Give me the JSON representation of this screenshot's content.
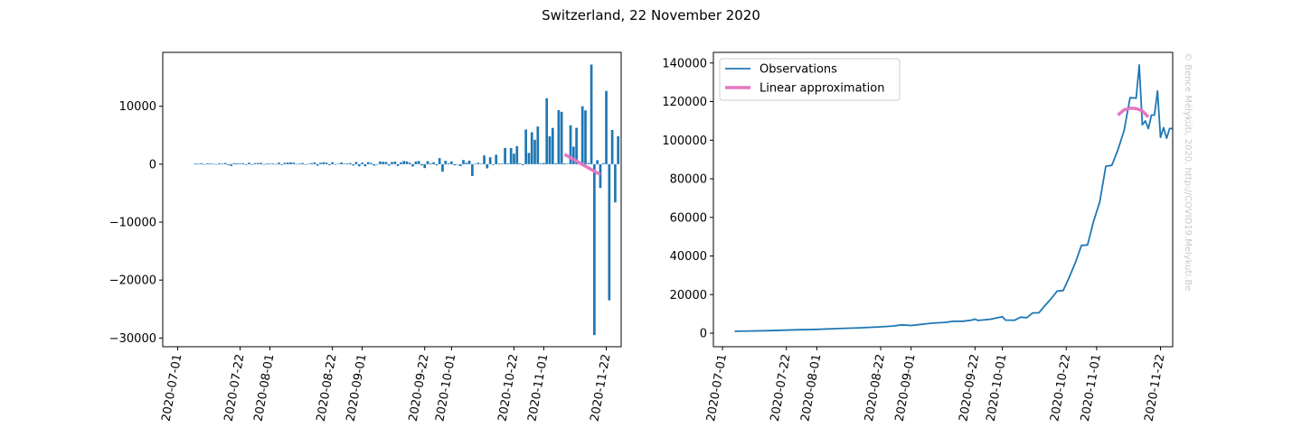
{
  "suptitle": "Switzerland, 22 November 2020",
  "watermark": "© Bence Mélykúti, 2020. http://COVID19.Melykuti.Be",
  "colors": {
    "observations": "#1f77b4",
    "approximation": "#e377c2"
  },
  "chart_data": [
    {
      "type": "bar",
      "title": "",
      "xlabel": "",
      "ylabel": "",
      "xlim": [
        "2020-06-26",
        "2020-11-27"
      ],
      "ylim": [
        -31500,
        19300
      ],
      "yticks": [
        -30000,
        -20000,
        -10000,
        0,
        10000
      ],
      "ytick_labels": [
        "−30000",
        "−20000",
        "−10000",
        "0",
        "10000"
      ],
      "xticks": [
        "2020-07-01",
        "2020-07-22",
        "2020-08-01",
        "2020-08-22",
        "2020-09-01",
        "2020-09-22",
        "2020-10-01",
        "2020-10-22",
        "2020-11-01",
        "2020-11-22"
      ],
      "start_date": "2020-07-07",
      "end_date": "2020-11-20",
      "values": [
        130,
        90,
        170,
        -40,
        140,
        120,
        80,
        -60,
        150,
        100,
        210,
        -150,
        -300,
        170,
        150,
        120,
        170,
        -120,
        260,
        -100,
        180,
        200,
        240,
        -80,
        140,
        110,
        120,
        30,
        270,
        -130,
        240,
        280,
        310,
        260,
        20,
        120,
        200,
        -60,
        90,
        180,
        310,
        -260,
        240,
        340,
        260,
        -170,
        340,
        -80,
        90,
        290,
        80,
        130,
        200,
        -230,
        390,
        -360,
        280,
        -370,
        360,
        210,
        -250,
        -100,
        470,
        410,
        390,
        -230,
        380,
        450,
        -300,
        310,
        550,
        480,
        250,
        -390,
        460,
        550,
        -220,
        -670,
        520,
        140,
        340,
        -210,
        1050,
        -1300,
        580,
        160,
        480,
        -190,
        -20,
        -330,
        720,
        240,
        620,
        -2050,
        90,
        240,
        80,
        1500,
        -720,
        1190,
        -120,
        1630,
        120,
        110,
        2800,
        140,
        2780,
        1810,
        3130,
        140,
        -160,
        5990,
        1950,
        5510,
        4210,
        6500,
        140,
        210,
        11380,
        4810,
        6260,
        150,
        9320,
        9040,
        130,
        90,
        6730,
        3030,
        6280,
        150,
        10000,
        9290,
        200,
        17200,
        -29500,
        700,
        -4100,
        190,
        12650,
        -23500,
        5910,
        -6600,
        4840
      ],
      "approximation": {
        "name": "Linear approximation",
        "x": [
          "2020-11-08",
          "2020-11-20"
        ],
        "y": [
          1700,
          -1800
        ]
      }
    },
    {
      "type": "line",
      "title": "",
      "xlabel": "",
      "ylabel": "",
      "xlim": [
        "2020-06-28",
        "2020-11-26"
      ],
      "ylim": [
        -7000,
        145500
      ],
      "yticks": [
        0,
        20000,
        40000,
        60000,
        80000,
        100000,
        120000,
        140000
      ],
      "ytick_labels": [
        "0",
        "20000",
        "40000",
        "60000",
        "80000",
        "100000",
        "120000",
        "140000"
      ],
      "xticks": [
        "2020-07-01",
        "2020-07-22",
        "2020-08-01",
        "2020-08-22",
        "2020-09-01",
        "2020-09-22",
        "2020-10-01",
        "2020-10-22",
        "2020-11-01",
        "2020-11-22"
      ],
      "legend": {
        "placement": "upper-left",
        "entries": [
          "Observations",
          "Linear approximation"
        ]
      },
      "series": [
        {
          "name": "Observations",
          "points": [
            [
              "2020-07-05",
              1000
            ],
            [
              "2020-07-10",
              1150
            ],
            [
              "2020-07-15",
              1300
            ],
            [
              "2020-07-20",
              1500
            ],
            [
              "2020-07-25",
              1750
            ],
            [
              "2020-08-01",
              2000
            ],
            [
              "2020-08-08",
              2400
            ],
            [
              "2020-08-15",
              2800
            ],
            [
              "2020-08-22",
              3300
            ],
            [
              "2020-08-26",
              3700
            ],
            [
              "2020-08-29",
              4300
            ],
            [
              "2020-09-01",
              4000
            ],
            [
              "2020-09-05",
              4700
            ],
            [
              "2020-09-08",
              5200
            ],
            [
              "2020-09-12",
              5600
            ],
            [
              "2020-09-15",
              6200
            ],
            [
              "2020-09-18",
              6200
            ],
            [
              "2020-09-21",
              6800
            ],
            [
              "2020-09-22",
              7300
            ],
            [
              "2020-09-23",
              6600
            ],
            [
              "2020-09-27",
              7200
            ],
            [
              "2020-09-30",
              8200
            ],
            [
              "2020-10-01",
              8600
            ],
            [
              "2020-10-02",
              6800
            ],
            [
              "2020-10-05",
              6700
            ],
            [
              "2020-10-07",
              8300
            ],
            [
              "2020-10-09",
              8000
            ],
            [
              "2020-10-11",
              10500
            ],
            [
              "2020-10-13",
              10600
            ],
            [
              "2020-10-15",
              14300
            ],
            [
              "2020-10-17",
              17800
            ],
            [
              "2020-10-19",
              21800
            ],
            [
              "2020-10-21",
              22100
            ],
            [
              "2020-10-23",
              29000
            ],
            [
              "2020-10-25",
              36500
            ],
            [
              "2020-10-27",
              45500
            ],
            [
              "2020-10-29",
              45700
            ],
            [
              "2020-10-31",
              58000
            ],
            [
              "2020-11-02",
              68000
            ],
            [
              "2020-11-04",
              86500
            ],
            [
              "2020-11-06",
              87000
            ],
            [
              "2020-11-08",
              95000
            ],
            [
              "2020-11-10",
              105000
            ],
            [
              "2020-11-12",
              122000
            ],
            [
              "2020-11-14",
              121800
            ],
            [
              "2020-11-15",
              139000
            ],
            [
              "2020-11-16",
              108000
            ],
            [
              "2020-11-17",
              110000
            ],
            [
              "2020-11-18",
              106000
            ],
            [
              "2020-11-19",
              113000
            ],
            [
              "2020-11-20",
              113000
            ],
            [
              "2020-11-21",
              125500
            ],
            [
              "2020-11-22",
              101500
            ],
            [
              "2020-11-23",
              106500
            ],
            [
              "2020-11-24",
              101000
            ],
            [
              "2020-11-25",
              106000
            ],
            [
              "2020-11-26",
              106000
            ]
          ]
        },
        {
          "name": "Linear approximation",
          "points": [
            [
              "2020-11-08",
              113000
            ],
            [
              "2020-11-10",
              115700
            ],
            [
              "2020-11-12",
              116600
            ],
            [
              "2020-11-14",
              116400
            ],
            [
              "2020-11-16",
              115200
            ],
            [
              "2020-11-18",
              112000
            ]
          ]
        }
      ]
    }
  ]
}
